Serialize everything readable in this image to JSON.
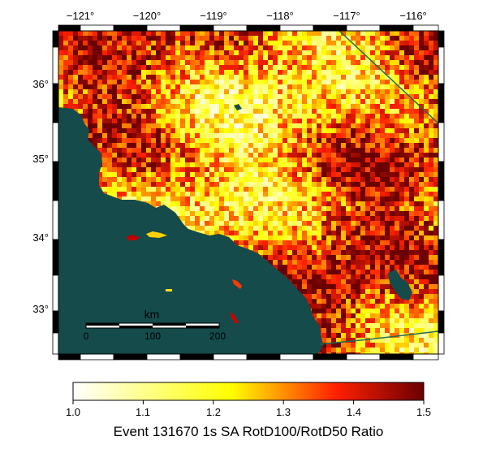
{
  "map": {
    "lon_ticks": [
      "−121°",
      "−120°",
      "−119°",
      "−118°",
      "−117°",
      "−116°"
    ],
    "lat_ticks": [
      "36°",
      "35°",
      "34°",
      "33°"
    ],
    "lon_values": [
      -121,
      -120,
      -119,
      -118,
      -117,
      -116
    ],
    "lat_values": [
      36,
      35,
      34,
      33
    ],
    "lon_range": [
      -121.4,
      -115.7
    ],
    "lat_range": [
      32.4,
      36.75
    ],
    "scale_bar": {
      "unit": "km",
      "ticks": [
        "0",
        "100",
        "200"
      ]
    },
    "colors": {
      "water": "#154b4b",
      "fault_line": "#1f6b55",
      "frame": "#000000"
    }
  },
  "colorbar": {
    "ticks": [
      "1.0",
      "1.1",
      "1.2",
      "1.3",
      "1.4",
      "1.5"
    ],
    "min": 1.0,
    "max": 1.5,
    "stops": [
      "#ffffff",
      "#ffff00",
      "#ff2000",
      "#6a0000"
    ],
    "label": "Event 131670 1s SA RotD100/RotD50 Ratio"
  }
}
